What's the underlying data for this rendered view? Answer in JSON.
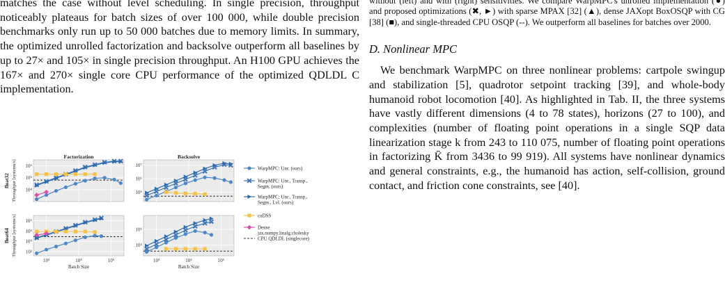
{
  "left_column": {
    "paragraph": "matches the case without level scheduling. In single precision, throughput noticeably plateaus for batch sizes of over 100 000, while double precision benchmarks only run up to 50 000 batches due to memory limits. In summary, the optimized unrolled factorization and backsolve outperform all baselines by up to 27× and 105× in single precision throughput. An H100 GPU achieves the 167× and 270× single core CPU performance of the optimized QDLDL C implementation."
  },
  "right_column": {
    "caption": "without (left) and with (right) sensitivities. We compare WarpMPC's unrolled implementation (●) and proposed optimizations (✖, ►) with sparse MPAX [32] (▲), dense JAXopt BoxOSQP with CG [38] (■), and single-threaded CPU OSQP (--). We outperform all baselines for batches over 2000.",
    "section_title": "D. Nonlinear MPC",
    "paragraph": "We benchmark WarpMPC on three nonlinear problems: cartpole swingup and stabilization [5], quadrotor setpoint tracking [39], and whole-body humanoid robot locomotion [40]. As highlighted in Tab. II, the three systems have vastly different dimensions (4 to 78 states), horizons (27 to 100), and complexities (number of floating point operations in a single SQP data linearization stage k from 243 to 110 075, number of floating point operations in factorizing K̄ from 3436 to 99 919). All systems have nonlinear dynamics and general constraints, e.g., the humanoid has action, self-collision, ground contact, and friction cone constraints, see [40]."
  },
  "chart_data": {
    "type": "line",
    "log_x": true,
    "log_y": true,
    "column_titles": [
      "Factorization",
      "Backsolve"
    ],
    "row_labels": [
      "float32",
      "float64"
    ],
    "ylabel": "Throughput [systems/s]",
    "xlabel": "Batch Size",
    "x_ticks": [
      "10³",
      "10⁴",
      "10⁵"
    ],
    "legend": [
      {
        "label": "WarpMPC: Unr. (ours)",
        "color": "#4a86c8",
        "marker": "circle"
      },
      {
        "label": "WarpMPC: Unr., Transp., Segm. (ours)",
        "color": "#3f78b8",
        "marker": "x"
      },
      {
        "label": "WarpMPC: Unr., Transp., Segm., Lvl. (ours)",
        "color": "#2f6bb0",
        "marker": "triangle-right"
      },
      {
        "label": "cuDSS",
        "color": "#f2c14e",
        "marker": "square"
      },
      {
        "label": "Dense jax.numpy.linalg.cholesky",
        "color": "#d94fa5",
        "marker": "diamond"
      },
      {
        "label": "CPU QDLDL (singlecore)",
        "color": "#333333",
        "marker": "dashed"
      }
    ],
    "panels": [
      {
        "title": "Factorization",
        "row": "float32",
        "y_ticks": [
          "10⁴",
          "10⁵",
          "10⁶"
        ],
        "ylim_log10": [
          3.0,
          6.5
        ],
        "xlim_log10": [
          2.6,
          5.4
        ],
        "cpu_log10": 4.8,
        "series": [
          {
            "name": "WarpMPC: Unr. (ours)",
            "x_log10": [
              2.7,
              3.0,
              3.3,
              3.6,
              3.9,
              4.2,
              4.5,
              4.8,
              5.1,
              5.3
            ],
            "y_log10": [
              3.2,
              3.55,
              3.9,
              4.2,
              4.5,
              4.75,
              4.95,
              5.0,
              4.85,
              4.55
            ]
          },
          {
            "name": "WarpMPC: Unr., Transp., Segm. (ours)",
            "x_log10": [
              2.7,
              3.0,
              3.3,
              3.6,
              3.9,
              4.2,
              4.5,
              4.8,
              5.1,
              5.3
            ],
            "y_log10": [
              4.4,
              4.7,
              5.0,
              5.3,
              5.6,
              5.9,
              6.1,
              6.3,
              6.4,
              6.4
            ]
          },
          {
            "name": "WarpMPC: Unr., Transp., Segm., Lvl. (ours)",
            "x_log10": [
              2.7,
              3.0,
              3.3,
              3.6,
              3.9,
              4.2,
              4.5,
              4.8,
              5.1,
              5.3
            ],
            "y_log10": [
              4.35,
              4.65,
              4.95,
              5.25,
              5.55,
              5.85,
              6.05,
              6.25,
              6.35,
              6.35
            ]
          },
          {
            "name": "cuDSS",
            "x_log10": [
              2.7,
              3.0,
              3.3,
              3.6,
              3.9,
              4.2,
              4.5
            ],
            "y_log10": [
              5.3,
              5.3,
              5.3,
              5.3,
              5.3,
              5.3,
              5.3
            ]
          },
          {
            "name": "Dense jax.numpy.linalg.cholesky",
            "x_log10": [
              2.7,
              3.0
            ],
            "y_log10": [
              3.55,
              3.8
            ]
          }
        ]
      },
      {
        "title": "Backsolve",
        "row": "float32",
        "y_ticks": [
          "10⁵",
          "10⁶",
          "10⁷"
        ],
        "ylim_log10": [
          4.3,
          7.4
        ],
        "xlim_log10": [
          2.6,
          5.4
        ],
        "cpu_log10": 4.7,
        "series": [
          {
            "name": "WarpMPC: Unr. (ours)",
            "x_log10": [
              2.7,
              3.0,
              3.3,
              3.6,
              3.9,
              4.2,
              4.5,
              4.8,
              5.1,
              5.3
            ],
            "y_log10": [
              4.45,
              4.75,
              5.05,
              5.35,
              5.65,
              5.9,
              6.1,
              6.05,
              5.9,
              5.75
            ]
          },
          {
            "name": "WarpMPC: Unr., Transp., Segm. (ours)",
            "x_log10": [
              2.7,
              3.0,
              3.3,
              3.6,
              3.9,
              4.2,
              4.5,
              4.8,
              5.1,
              5.3
            ],
            "y_log10": [
              4.75,
              5.05,
              5.35,
              5.65,
              5.95,
              6.25,
              6.55,
              6.85,
              7.05,
              7.0
            ]
          },
          {
            "name": "WarpMPC: Unr., Transp., Segm., Lvl. (ours)",
            "x_log10": [
              2.7,
              3.0,
              3.3,
              3.6,
              3.9,
              4.2,
              4.5,
              4.8,
              5.1,
              5.3
            ],
            "y_log10": [
              4.95,
              5.25,
              5.55,
              5.85,
              6.15,
              6.45,
              6.75,
              7.0,
              7.15,
              7.1
            ]
          },
          {
            "name": "cuDSS",
            "x_log10": [
              3.3,
              3.6,
              3.9,
              4.2,
              4.5
            ],
            "y_log10": [
              5.0,
              4.95,
              4.9,
              4.9,
              4.85
            ]
          }
        ]
      },
      {
        "title": "",
        "row": "float64",
        "y_ticks": [
          "10³",
          "10⁴",
          "10⁵",
          "10⁶"
        ],
        "ylim_log10": [
          2.6,
          6.5
        ],
        "xlim_log10": [
          2.6,
          5.4
        ],
        "cpu_log10": 4.45,
        "series": [
          {
            "name": "WarpMPC: Unr. (ours)",
            "x_log10": [
              2.7,
              3.0,
              3.3,
              3.6,
              3.9,
              4.2,
              4.5,
              4.7
            ],
            "y_log10": [
              2.85,
              3.2,
              3.5,
              3.8,
              4.1,
              4.4,
              4.55,
              4.5
            ]
          },
          {
            "name": "WarpMPC: Unr., Transp., Segm. (ours)",
            "x_log10": [
              2.7,
              3.0,
              3.3,
              3.6,
              3.9,
              4.2,
              4.5,
              4.7
            ],
            "y_log10": [
              4.35,
              4.65,
              4.95,
              5.25,
              5.55,
              5.85,
              6.1,
              6.25
            ]
          },
          {
            "name": "WarpMPC: Unr., Transp., Segm., Lvl. (ours)",
            "x_log10": [
              2.7,
              3.0,
              3.3,
              3.6,
              3.9,
              4.2,
              4.5,
              4.7
            ],
            "y_log10": [
              4.3,
              4.6,
              4.9,
              5.2,
              5.5,
              5.8,
              6.05,
              6.2
            ]
          },
          {
            "name": "cuDSS",
            "x_log10": [
              2.7,
              3.0,
              3.3,
              3.6,
              3.9,
              4.2,
              4.5
            ],
            "y_log10": [
              4.95,
              4.95,
              4.95,
              4.95,
              4.95,
              4.95,
              4.9
            ]
          },
          {
            "name": "Dense jax.numpy.linalg.cholesky",
            "x_log10": [
              2.7,
              3.0
            ],
            "y_log10": [
              4.6,
              4.75
            ]
          }
        ]
      },
      {
        "title": "",
        "row": "float64",
        "y_ticks": [
          "10⁵",
          "10⁶"
        ],
        "ylim_log10": [
          4.3,
          6.9
        ],
        "xlim_log10": [
          2.6,
          5.4
        ],
        "cpu_log10": 4.6,
        "series": [
          {
            "name": "WarpMPC: Unr. (ours)",
            "x_log10": [
              2.7,
              3.0,
              3.3,
              3.6,
              3.9,
              4.2,
              4.5,
              4.7
            ],
            "y_log10": [
              4.55,
              4.85,
              5.15,
              5.45,
              5.7,
              5.9,
              5.8,
              5.65
            ]
          },
          {
            "name": "WarpMPC: Unr., Transp., Segm. (ours)",
            "x_log10": [
              2.7,
              3.0,
              3.3,
              3.6,
              3.9,
              4.2,
              4.5,
              4.7
            ],
            "y_log10": [
              4.75,
              5.05,
              5.35,
              5.65,
              5.95,
              6.2,
              6.4,
              6.5
            ]
          },
          {
            "name": "WarpMPC: Unr., Transp., Segm., Lvl. (ours)",
            "x_log10": [
              2.7,
              3.0,
              3.3,
              3.6,
              3.9,
              4.2,
              4.5,
              4.7
            ],
            "y_log10": [
              4.95,
              5.25,
              5.55,
              5.85,
              6.15,
              6.4,
              6.6,
              6.7
            ]
          },
          {
            "name": "cuDSS",
            "x_log10": [
              3.3,
              3.6,
              3.9,
              4.2,
              4.5
            ],
            "y_log10": [
              4.75,
              4.75,
              4.75,
              4.75,
              4.75
            ]
          }
        ]
      }
    ]
  }
}
